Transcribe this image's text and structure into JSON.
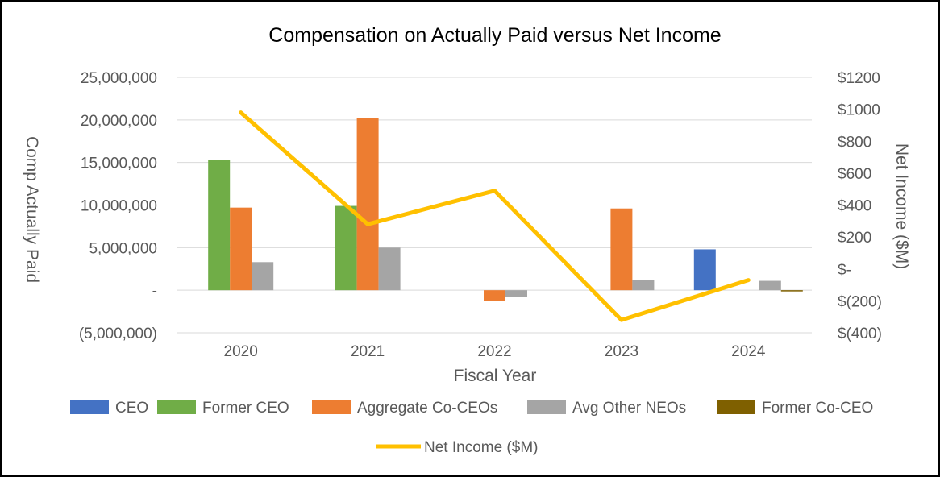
{
  "chart_data": {
    "type": "bar",
    "title": "Compensation on Actually Paid versus Net Income",
    "xlabel": "Fiscal Year",
    "ylabel": "Comp Actually Paid",
    "y2label": "Net Income ($M)",
    "categories": [
      "2020",
      "2021",
      "2022",
      "2023",
      "2024"
    ],
    "ylim": [
      -5000000,
      25000000
    ],
    "y_ticks": [
      {
        "value": 25000000,
        "label": "25,000,000"
      },
      {
        "value": 20000000,
        "label": "20,000,000"
      },
      {
        "value": 15000000,
        "label": "15,000,000"
      },
      {
        "value": 10000000,
        "label": "10,000,000"
      },
      {
        "value": 5000000,
        "label": "5,000,000"
      },
      {
        "value": 0,
        "label": "-"
      },
      {
        "value": -5000000,
        "label": "(5,000,000)"
      }
    ],
    "y2lim": [
      -400,
      1200
    ],
    "y2_ticks": [
      {
        "value": 1200,
        "label": "$1200"
      },
      {
        "value": 1000,
        "label": "$1000"
      },
      {
        "value": 800,
        "label": "$800"
      },
      {
        "value": 600,
        "label": "$600"
      },
      {
        "value": 400,
        "label": "$400"
      },
      {
        "value": 200,
        "label": "$200"
      },
      {
        "value": 0,
        "label": "$-"
      },
      {
        "value": -200,
        "label": "$(200)"
      },
      {
        "value": -400,
        "label": "$(400)"
      }
    ],
    "grid": true,
    "legend_position": "bottom",
    "series": [
      {
        "name": "CEO",
        "color": "#4472C4",
        "values": [
          null,
          null,
          null,
          null,
          4800000
        ]
      },
      {
        "name": "Former CEO",
        "color": "#70AD47",
        "values": [
          15300000,
          9900000,
          null,
          null,
          null
        ]
      },
      {
        "name": "Aggregate Co-CEOs",
        "color": "#ED7D31",
        "values": [
          9700000,
          20200000,
          -1300000,
          9600000,
          null
        ]
      },
      {
        "name": "Avg Other NEOs",
        "color": "#A5A5A5",
        "values": [
          3300000,
          5000000,
          -800000,
          1200000,
          1100000
        ]
      },
      {
        "name": "Former Co-CEO",
        "color": "#7F6000",
        "values": [
          null,
          null,
          null,
          null,
          -100000
        ]
      }
    ],
    "line_series": {
      "name": "Net Income ($M)",
      "color": "#FFC000",
      "axis": "secondary",
      "values": [
        980,
        280,
        490,
        -320,
        -70
      ]
    }
  }
}
